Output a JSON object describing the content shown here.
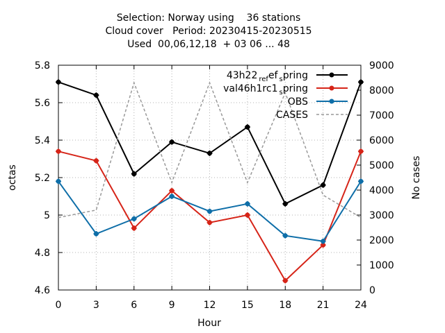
{
  "chart_data": {
    "type": "line",
    "title_lines": [
      "Selection: Norway using    36 stations",
      "Cloud cover   Period: 20230415-20230515",
      "Used  00,06,12,18  + 03 06 ... 48"
    ],
    "xlabel": "Hour",
    "ylabel": "octas",
    "y2label": "No cases",
    "x": [
      0,
      3,
      6,
      9,
      12,
      15,
      18,
      21,
      24
    ],
    "xlim": [
      0,
      24
    ],
    "ylim": [
      4.6,
      5.8
    ],
    "y2lim": [
      0,
      9000
    ],
    "x_ticks": [
      "0",
      "3",
      "6",
      "9",
      "12",
      "15",
      "18",
      "21",
      "24"
    ],
    "y_ticks": [
      "4.6",
      "4.8",
      "5",
      "5.2",
      "5.4",
      "5.6",
      "5.8"
    ],
    "y2_ticks": [
      "0",
      "1000",
      "2000",
      "3000",
      "4000",
      "5000",
      "6000",
      "7000",
      "8000",
      "9000"
    ],
    "grid": true,
    "legend_position": "top-right",
    "series": [
      {
        "name": "43h22_ref_spring",
        "label_main": "43h22",
        "label_sub1": "ref",
        "label_sub2": "s",
        "label_end": "pring",
        "color": "#000000",
        "axis": "y",
        "dashed": false,
        "values": [
          5.71,
          5.64,
          5.22,
          5.39,
          5.33,
          5.47,
          5.06,
          5.16,
          5.71
        ]
      },
      {
        "name": "val46h1rc1_spring",
        "label_main": "val46h1rc1",
        "label_sub1": "",
        "label_sub2": "s",
        "label_end": "pring",
        "color": "#d62418",
        "axis": "y",
        "dashed": false,
        "values": [
          5.34,
          5.29,
          4.93,
          5.13,
          4.96,
          5.0,
          4.65,
          4.84,
          5.34
        ]
      },
      {
        "name": "OBS",
        "label_main": "OBS",
        "label_sub1": "",
        "label_sub2": "",
        "label_end": "",
        "color": "#0e6ea8",
        "axis": "y",
        "dashed": false,
        "values": [
          5.18,
          4.9,
          4.98,
          5.1,
          5.02,
          5.06,
          4.89,
          4.86,
          5.18
        ]
      },
      {
        "name": "CASES",
        "label_main": "CASES",
        "label_sub1": "",
        "label_sub2": "",
        "label_end": "",
        "color": "#999999",
        "axis": "y2",
        "dashed": true,
        "values": [
          2900,
          3200,
          8300,
          4300,
          8300,
          4300,
          7900,
          3800,
          2900
        ]
      }
    ]
  }
}
